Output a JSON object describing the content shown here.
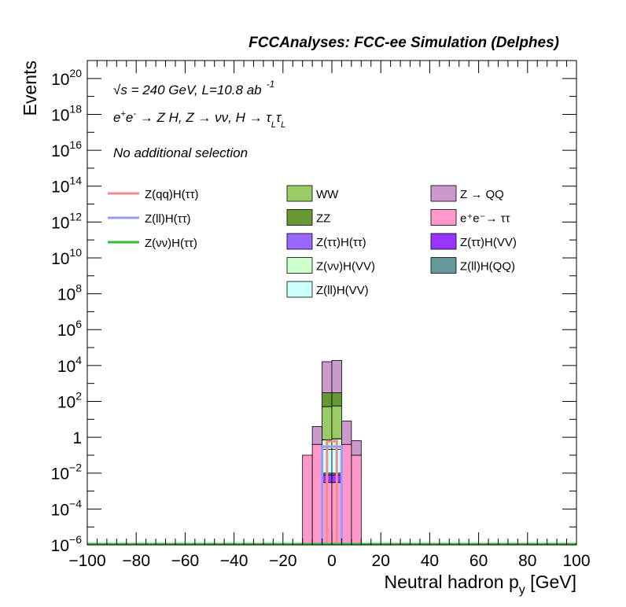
{
  "chart_data": {
    "type": "bar",
    "title": "FCCAnalyses: FCC-ee Simulation (Delphes)",
    "xlabel": "Neutral hadron p",
    "xlabel_sub": "y",
    "xlabel_unit": " [GeV]",
    "ylabel": "Events",
    "xlim": [
      -100,
      100
    ],
    "ylim": [
      1e-06,
      1e+21
    ],
    "yscale": "log",
    "x_ticks": [
      -100,
      -80,
      -60,
      -40,
      -20,
      0,
      20,
      40,
      60,
      80,
      100
    ],
    "x_tick_labels": [
      "−100",
      "−80",
      "−60",
      "−40",
      "−20",
      "0",
      "20",
      "40",
      "60",
      "80",
      "100"
    ],
    "y_ticks": [
      {
        "value": 1e-06,
        "base": "10",
        "exp": "−6"
      },
      {
        "value": 0.0001,
        "base": "10",
        "exp": "−4"
      },
      {
        "value": 0.01,
        "base": "10",
        "exp": "−2"
      },
      {
        "value": 1,
        "base": "1",
        "exp": ""
      },
      {
        "value": 100.0,
        "base": "10",
        "exp": "2"
      },
      {
        "value": 10000.0,
        "base": "10",
        "exp": "4"
      },
      {
        "value": 1000000.0,
        "base": "10",
        "exp": "6"
      },
      {
        "value": 100000000.0,
        "base": "10",
        "exp": "8"
      },
      {
        "value": 10000000000.0,
        "base": "10",
        "exp": "10"
      },
      {
        "value": 1000000000000.0,
        "base": "10",
        "exp": "12"
      },
      {
        "value": 100000000000000.0,
        "base": "10",
        "exp": "14"
      },
      {
        "value": 1e+16,
        "base": "10",
        "exp": "16"
      },
      {
        "value": 1e+18,
        "base": "10",
        "exp": "18"
      },
      {
        "value": 1e+20,
        "base": "10",
        "exp": "20"
      }
    ],
    "annotations": {
      "sqrt": "√s",
      "energy": " = 240 GeV, L=10.8 ab",
      "energy_exp": "-1",
      "process_a": "e",
      "process_a_sup": "+",
      "process_b": "e",
      "process_b_sup": "-",
      "process_rest": " → Z H, Z  → νν, H  → τ",
      "process_sub1": "L",
      "process_tau2": "τ",
      "process_sub2": "L",
      "selection": "No additional selection"
    },
    "background_stack": {
      "order_bottom_to_top": [
        "e⁺e⁻→ ττ",
        "Z(ττ)H(VV)",
        "Z(ll)H(QQ)",
        "Z(ll)H(VV)",
        "Z(νν)H(VV)",
        "Z(ττ)H(ττ)",
        "WW",
        "ZZ",
        "Z → QQ"
      ],
      "bins": [
        {
          "x0": -12,
          "x1": -8,
          "components": [
            0.1,
            0,
            0,
            0,
            0,
            0,
            0,
            0,
            0
          ]
        },
        {
          "x0": -8,
          "x1": -4,
          "components": [
            0.4,
            0,
            0,
            0,
            0,
            0,
            0,
            0,
            3.6
          ]
        },
        {
          "x0": -4,
          "x1": 0,
          "components": [
            0.003,
            0.005,
            0.002,
            0.2,
            0.5,
            0.02,
            50,
            250,
            16000
          ]
        },
        {
          "x0": 0,
          "x1": 4,
          "components": [
            0.003,
            0.005,
            0.002,
            0.2,
            0.6,
            0.02,
            55,
            245,
            19000
          ]
        },
        {
          "x0": 4,
          "x1": 8,
          "components": [
            0.4,
            0,
            0,
            0,
            0,
            0,
            0,
            0,
            7.6
          ]
        },
        {
          "x0": 8,
          "x1": 12,
          "components": [
            0.1,
            0,
            0,
            0,
            0,
            0,
            0,
            0,
            0.55
          ]
        }
      ]
    },
    "signal_lines": [
      {
        "name": "Z(qq)H(ττ)",
        "color": "#f08c8c",
        "points": [
          [
            -2,
            0.6
          ],
          [
            2,
            0.6
          ]
        ]
      },
      {
        "name": "Z(ll)H(ττ)",
        "color": "#9999ff",
        "points": [
          [
            -4,
            0.3
          ],
          [
            4,
            0.3
          ]
        ]
      },
      {
        "name": "Z(νν)H(ττ)",
        "color": "#33bb33",
        "points": [
          [
            -100,
            1e-06
          ],
          [
            100,
            1e-06
          ]
        ]
      }
    ],
    "legend": {
      "placement": "top",
      "lines": [
        {
          "label": "Z(qq)H(ττ)",
          "color": "#f08c8c"
        },
        {
          "label": "Z(ll)H(ττ)",
          "color": "#9999ff"
        },
        {
          "label": "Z(νν)H(ττ)",
          "color": "#33bb33"
        }
      ],
      "boxes": [
        {
          "label": "WW",
          "color": "#99cc66",
          "col": 0,
          "row": 0
        },
        {
          "label": "ZZ",
          "color": "#669933",
          "col": 0,
          "row": 1
        },
        {
          "label": "Z(ττ)H(ττ)",
          "color": "#9966ff",
          "col": 0,
          "row": 2
        },
        {
          "label": "Z(νν)H(VV)",
          "color": "#ccffcc",
          "col": 0,
          "row": 3
        },
        {
          "label": "Z(ll)H(VV)",
          "color": "#ccffff",
          "col": 0,
          "row": 4
        },
        {
          "label": "Z → QQ",
          "color": "#cc99cc",
          "col": 1,
          "row": 0
        },
        {
          "label": "e⁺e⁻→ ττ",
          "color": "#ff99cc",
          "col": 1,
          "row": 1
        },
        {
          "label": "Z(ττ)H(VV)",
          "color": "#9933ff",
          "col": 1,
          "row": 2
        },
        {
          "label": "Z(ll)H(QQ)",
          "color": "#669999",
          "col": 1,
          "row": 3
        }
      ]
    }
  }
}
